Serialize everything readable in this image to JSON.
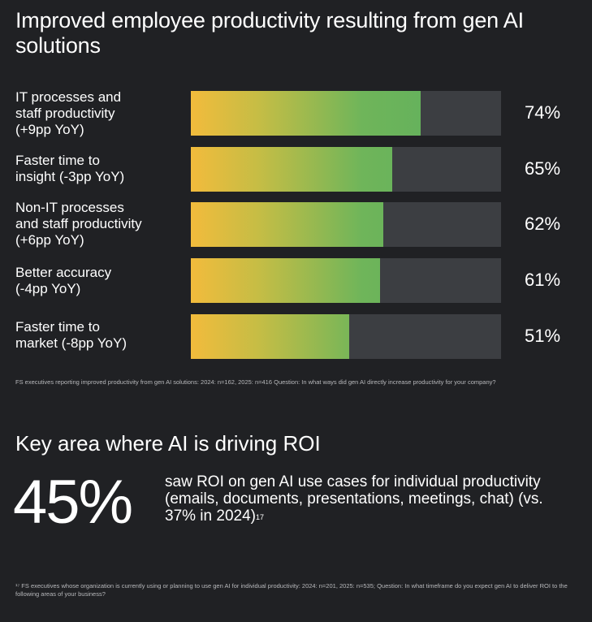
{
  "title": "Improved employee productivity resulting from gen AI solutions",
  "chart_data": {
    "type": "bar",
    "orientation": "horizontal",
    "categories": [
      "IT processes and staff productivity (+9pp YoY)",
      "Faster time to insight (-3pp YoY)",
      "Non-IT processes and staff productivity (+6pp YoY)",
      "Better accuracy (-4pp YoY)",
      "Faster time to market (-8pp YoY)"
    ],
    "values": [
      74,
      65,
      62,
      61,
      51
    ],
    "value_labels": [
      "74%",
      "65%",
      "62%",
      "61%",
      "51%"
    ],
    "xlim": [
      0,
      100
    ],
    "grid": false,
    "colors": {
      "track": "#3c3e42",
      "gradient_start": "#f2bb3c",
      "gradient_end": "#5aae5e"
    }
  },
  "bars": [
    {
      "label_lines": [
        "IT processes and",
        "staff productivity",
        "(+9pp YoY)"
      ],
      "value": 74,
      "value_label": "74%"
    },
    {
      "label_lines": [
        "Faster time to",
        "insight (-3pp YoY)"
      ],
      "value": 65,
      "value_label": "65%"
    },
    {
      "label_lines": [
        "Non-IT processes",
        "and staff productivity",
        "(+6pp YoY)"
      ],
      "value": 62,
      "value_label": "62%"
    },
    {
      "label_lines": [
        "Better accuracy",
        "(-4pp YoY)"
      ],
      "value": 61,
      "value_label": "61%"
    },
    {
      "label_lines": [
        "Faster time to",
        "market (-8pp YoY)"
      ],
      "value": 51,
      "value_label": "51%"
    }
  ],
  "footnote_1": "FS executives reporting improved productivity from gen AI solutions: 2024: n=162, 2025: n=416 Question: In what ways did gen AI directly increase productivity for your company?",
  "section": {
    "title": "Key area where AI is driving ROI",
    "stat": "45%",
    "description": "saw ROI on gen AI use cases for individual productivity (emails, documents, presentations, meetings, chat) (vs. 37% in 2024)",
    "footnote_marker": "17"
  },
  "footnote_2": "¹⁷ FS executives whose organization is currently using or planning to use gen AI for individual productivity: 2024: n=201, 2025: n=535; Question: In what timeframe do you expect gen AI to deliver ROI to the following areas of your business?"
}
